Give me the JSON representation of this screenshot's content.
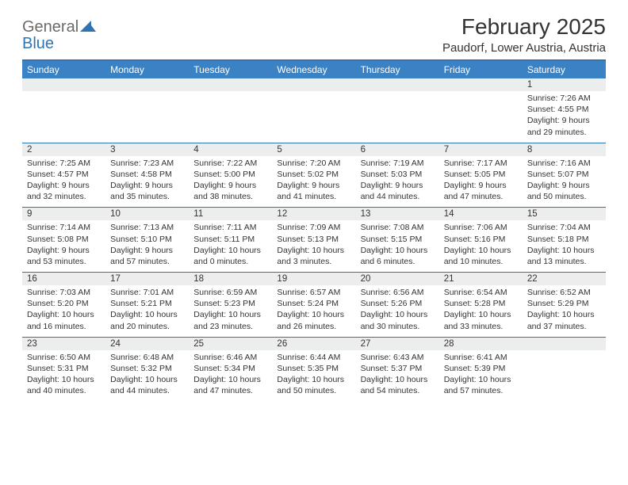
{
  "logo": {
    "word1": "General",
    "word2": "Blue"
  },
  "title": "February 2025",
  "location": "Paudorf, Lower Austria, Austria",
  "colors": {
    "header_bg": "#3b82c4",
    "border": "#2f73b3",
    "daynum_bg": "#eceded",
    "text": "#333333",
    "logo_gray": "#6a6a6a",
    "logo_blue": "#2f73b3",
    "page_bg": "#ffffff"
  },
  "day_labels": [
    "Sunday",
    "Monday",
    "Tuesday",
    "Wednesday",
    "Thursday",
    "Friday",
    "Saturday"
  ],
  "weeks": [
    [
      {
        "n": "",
        "sr": "",
        "ss": "",
        "dl1": "",
        "dl2": ""
      },
      {
        "n": "",
        "sr": "",
        "ss": "",
        "dl1": "",
        "dl2": ""
      },
      {
        "n": "",
        "sr": "",
        "ss": "",
        "dl1": "",
        "dl2": ""
      },
      {
        "n": "",
        "sr": "",
        "ss": "",
        "dl1": "",
        "dl2": ""
      },
      {
        "n": "",
        "sr": "",
        "ss": "",
        "dl1": "",
        "dl2": ""
      },
      {
        "n": "",
        "sr": "",
        "ss": "",
        "dl1": "",
        "dl2": ""
      },
      {
        "n": "1",
        "sr": "Sunrise: 7:26 AM",
        "ss": "Sunset: 4:55 PM",
        "dl1": "Daylight: 9 hours",
        "dl2": "and 29 minutes."
      }
    ],
    [
      {
        "n": "2",
        "sr": "Sunrise: 7:25 AM",
        "ss": "Sunset: 4:57 PM",
        "dl1": "Daylight: 9 hours",
        "dl2": "and 32 minutes."
      },
      {
        "n": "3",
        "sr": "Sunrise: 7:23 AM",
        "ss": "Sunset: 4:58 PM",
        "dl1": "Daylight: 9 hours",
        "dl2": "and 35 minutes."
      },
      {
        "n": "4",
        "sr": "Sunrise: 7:22 AM",
        "ss": "Sunset: 5:00 PM",
        "dl1": "Daylight: 9 hours",
        "dl2": "and 38 minutes."
      },
      {
        "n": "5",
        "sr": "Sunrise: 7:20 AM",
        "ss": "Sunset: 5:02 PM",
        "dl1": "Daylight: 9 hours",
        "dl2": "and 41 minutes."
      },
      {
        "n": "6",
        "sr": "Sunrise: 7:19 AM",
        "ss": "Sunset: 5:03 PM",
        "dl1": "Daylight: 9 hours",
        "dl2": "and 44 minutes."
      },
      {
        "n": "7",
        "sr": "Sunrise: 7:17 AM",
        "ss": "Sunset: 5:05 PM",
        "dl1": "Daylight: 9 hours",
        "dl2": "and 47 minutes."
      },
      {
        "n": "8",
        "sr": "Sunrise: 7:16 AM",
        "ss": "Sunset: 5:07 PM",
        "dl1": "Daylight: 9 hours",
        "dl2": "and 50 minutes."
      }
    ],
    [
      {
        "n": "9",
        "sr": "Sunrise: 7:14 AM",
        "ss": "Sunset: 5:08 PM",
        "dl1": "Daylight: 9 hours",
        "dl2": "and 53 minutes."
      },
      {
        "n": "10",
        "sr": "Sunrise: 7:13 AM",
        "ss": "Sunset: 5:10 PM",
        "dl1": "Daylight: 9 hours",
        "dl2": "and 57 minutes."
      },
      {
        "n": "11",
        "sr": "Sunrise: 7:11 AM",
        "ss": "Sunset: 5:11 PM",
        "dl1": "Daylight: 10 hours",
        "dl2": "and 0 minutes."
      },
      {
        "n": "12",
        "sr": "Sunrise: 7:09 AM",
        "ss": "Sunset: 5:13 PM",
        "dl1": "Daylight: 10 hours",
        "dl2": "and 3 minutes."
      },
      {
        "n": "13",
        "sr": "Sunrise: 7:08 AM",
        "ss": "Sunset: 5:15 PM",
        "dl1": "Daylight: 10 hours",
        "dl2": "and 6 minutes."
      },
      {
        "n": "14",
        "sr": "Sunrise: 7:06 AM",
        "ss": "Sunset: 5:16 PM",
        "dl1": "Daylight: 10 hours",
        "dl2": "and 10 minutes."
      },
      {
        "n": "15",
        "sr": "Sunrise: 7:04 AM",
        "ss": "Sunset: 5:18 PM",
        "dl1": "Daylight: 10 hours",
        "dl2": "and 13 minutes."
      }
    ],
    [
      {
        "n": "16",
        "sr": "Sunrise: 7:03 AM",
        "ss": "Sunset: 5:20 PM",
        "dl1": "Daylight: 10 hours",
        "dl2": "and 16 minutes."
      },
      {
        "n": "17",
        "sr": "Sunrise: 7:01 AM",
        "ss": "Sunset: 5:21 PM",
        "dl1": "Daylight: 10 hours",
        "dl2": "and 20 minutes."
      },
      {
        "n": "18",
        "sr": "Sunrise: 6:59 AM",
        "ss": "Sunset: 5:23 PM",
        "dl1": "Daylight: 10 hours",
        "dl2": "and 23 minutes."
      },
      {
        "n": "19",
        "sr": "Sunrise: 6:57 AM",
        "ss": "Sunset: 5:24 PM",
        "dl1": "Daylight: 10 hours",
        "dl2": "and 26 minutes."
      },
      {
        "n": "20",
        "sr": "Sunrise: 6:56 AM",
        "ss": "Sunset: 5:26 PM",
        "dl1": "Daylight: 10 hours",
        "dl2": "and 30 minutes."
      },
      {
        "n": "21",
        "sr": "Sunrise: 6:54 AM",
        "ss": "Sunset: 5:28 PM",
        "dl1": "Daylight: 10 hours",
        "dl2": "and 33 minutes."
      },
      {
        "n": "22",
        "sr": "Sunrise: 6:52 AM",
        "ss": "Sunset: 5:29 PM",
        "dl1": "Daylight: 10 hours",
        "dl2": "and 37 minutes."
      }
    ],
    [
      {
        "n": "23",
        "sr": "Sunrise: 6:50 AM",
        "ss": "Sunset: 5:31 PM",
        "dl1": "Daylight: 10 hours",
        "dl2": "and 40 minutes."
      },
      {
        "n": "24",
        "sr": "Sunrise: 6:48 AM",
        "ss": "Sunset: 5:32 PM",
        "dl1": "Daylight: 10 hours",
        "dl2": "and 44 minutes."
      },
      {
        "n": "25",
        "sr": "Sunrise: 6:46 AM",
        "ss": "Sunset: 5:34 PM",
        "dl1": "Daylight: 10 hours",
        "dl2": "and 47 minutes."
      },
      {
        "n": "26",
        "sr": "Sunrise: 6:44 AM",
        "ss": "Sunset: 5:35 PM",
        "dl1": "Daylight: 10 hours",
        "dl2": "and 50 minutes."
      },
      {
        "n": "27",
        "sr": "Sunrise: 6:43 AM",
        "ss": "Sunset: 5:37 PM",
        "dl1": "Daylight: 10 hours",
        "dl2": "and 54 minutes."
      },
      {
        "n": "28",
        "sr": "Sunrise: 6:41 AM",
        "ss": "Sunset: 5:39 PM",
        "dl1": "Daylight: 10 hours",
        "dl2": "and 57 minutes."
      },
      {
        "n": "",
        "sr": "",
        "ss": "",
        "dl1": "",
        "dl2": ""
      }
    ]
  ]
}
